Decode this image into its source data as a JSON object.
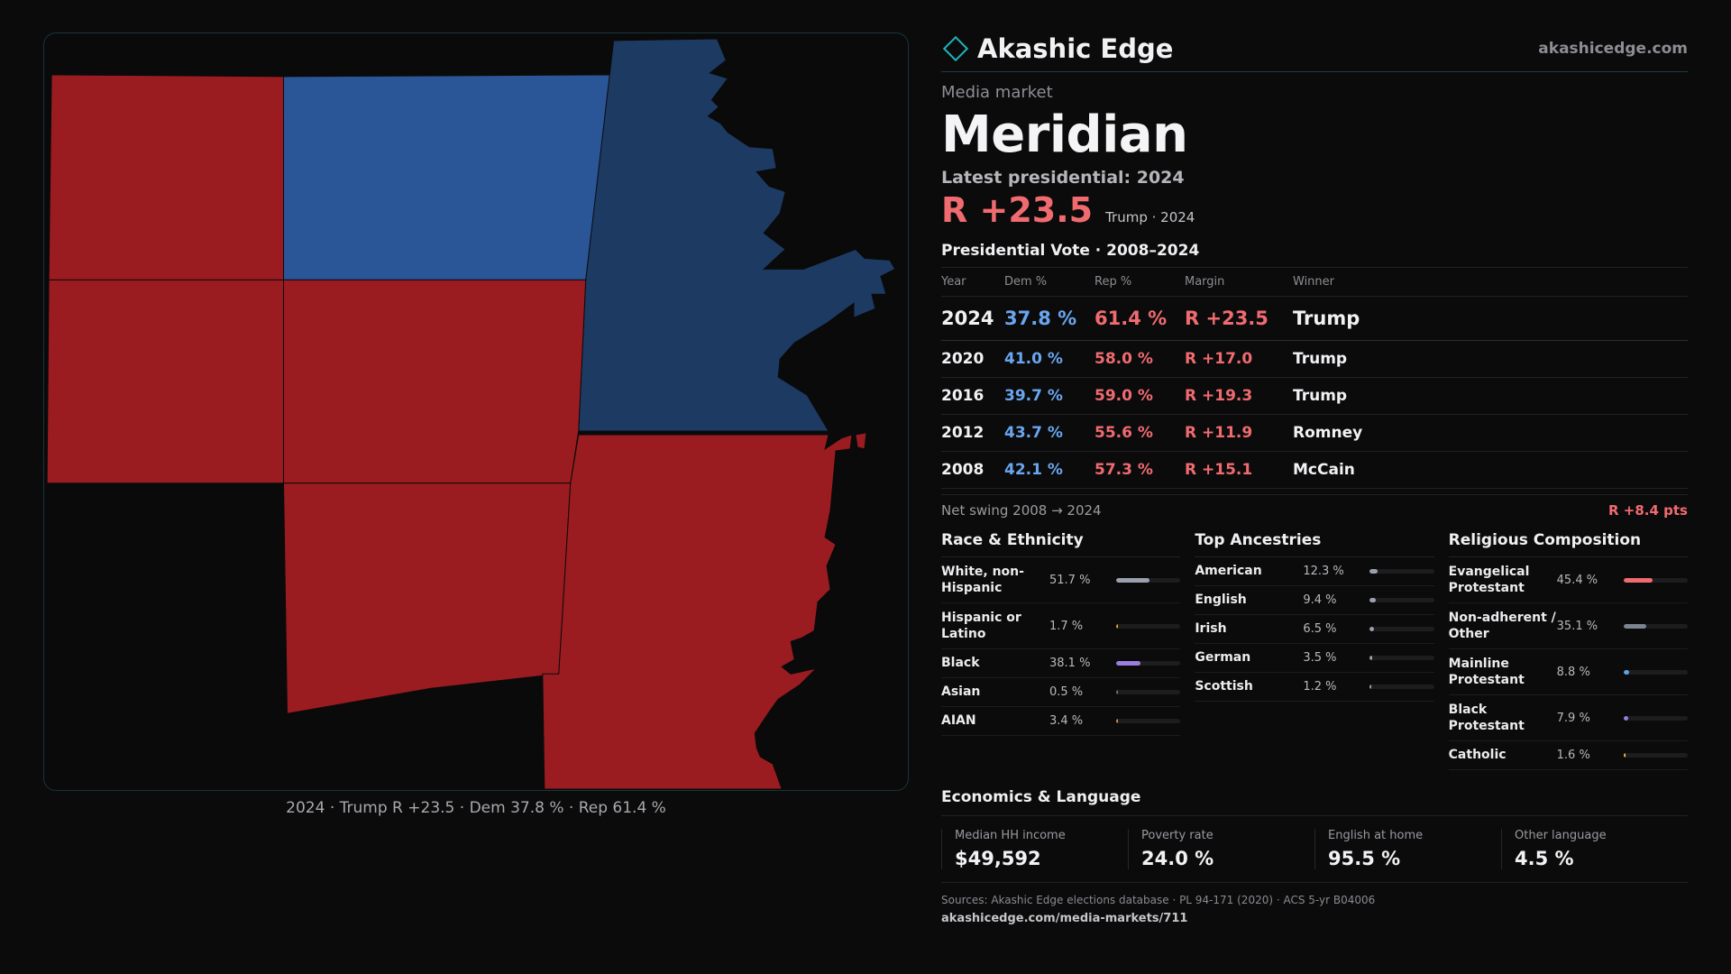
{
  "map": {
    "caption": "2024 · Trump R +23.5 · Dem 37.8 % · Rep 61.4 %",
    "colors": {
      "rep": "#9b1c20",
      "dem_light": "#2a5596",
      "dem_dark": "#1d3a62"
    }
  },
  "header": {
    "brand": "Akashic Edge",
    "url": "akashicedge.com"
  },
  "market": {
    "kicker": "Media market",
    "name": "Meridian",
    "latest": "Latest presidential: 2024",
    "margin": "R +23.5",
    "margin_sub": "Trump · 2024"
  },
  "votes": {
    "title": "Presidential Vote · 2008–2024",
    "headers": [
      "Year",
      "Dem %",
      "Rep %",
      "Margin",
      "Winner"
    ],
    "rows": [
      {
        "year": "2024",
        "dem": "37.8 %",
        "rep": "61.4 %",
        "margin": "R +23.5",
        "winner": "Trump"
      },
      {
        "year": "2020",
        "dem": "41.0 %",
        "rep": "58.0 %",
        "margin": "R +17.0",
        "winner": "Trump"
      },
      {
        "year": "2016",
        "dem": "39.7 %",
        "rep": "59.0 %",
        "margin": "R +19.3",
        "winner": "Trump"
      },
      {
        "year": "2012",
        "dem": "43.7 %",
        "rep": "55.6 %",
        "margin": "R +11.9",
        "winner": "Romney"
      },
      {
        "year": "2008",
        "dem": "42.1 %",
        "rep": "57.3 %",
        "margin": "R +15.1",
        "winner": "McCain"
      }
    ],
    "swing_label": "Net swing 2008 → 2024",
    "swing_value": "R +8.4 pts"
  },
  "race": {
    "title": "Race & Ethnicity",
    "items": [
      {
        "label": "White, non-Hispanic",
        "value": "51.7 %",
        "pct": 51.7,
        "color": "#9aa1ad"
      },
      {
        "label": "Hispanic or Latino",
        "value": "1.7 %",
        "pct": 1.7,
        "color": "#e0a336"
      },
      {
        "label": "Black",
        "value": "38.1 %",
        "pct": 38.1,
        "color": "#9b7ee0"
      },
      {
        "label": "Asian",
        "value": "0.5 %",
        "pct": 0.5,
        "color": "#6e6e74"
      },
      {
        "label": "AIAN",
        "value": "3.4 %",
        "pct": 3.4,
        "color": "#e08a3a"
      }
    ]
  },
  "ancestry": {
    "title": "Top Ancestries",
    "items": [
      {
        "label": "American",
        "value": "12.3 %",
        "pct": 12.3,
        "color": "#9aa1ad"
      },
      {
        "label": "English",
        "value": "9.4 %",
        "pct": 9.4,
        "color": "#9aa1ad"
      },
      {
        "label": "Irish",
        "value": "6.5 %",
        "pct": 6.5,
        "color": "#9aa1ad"
      },
      {
        "label": "German",
        "value": "3.5 %",
        "pct": 3.5,
        "color": "#9aa1ad"
      },
      {
        "label": "Scottish",
        "value": "1.2 %",
        "pct": 1.2,
        "color": "#9aa1ad"
      }
    ]
  },
  "religion": {
    "title": "Religious Composition",
    "items": [
      {
        "label": "Evangelical Protestant",
        "value": "45.4 %",
        "pct": 45.4,
        "color": "#f06b70"
      },
      {
        "label": "Non-adherent / Other",
        "value": "35.1 %",
        "pct": 35.1,
        "color": "#7d8591"
      },
      {
        "label": "Mainline Protestant",
        "value": "8.8 %",
        "pct": 8.8,
        "color": "#5fa1e8"
      },
      {
        "label": "Black Protestant",
        "value": "7.9 %",
        "pct": 7.9,
        "color": "#9b7ee0"
      },
      {
        "label": "Catholic",
        "value": "1.6 %",
        "pct": 1.6,
        "color": "#e0c33a"
      }
    ]
  },
  "economics": {
    "title": "Economics & Language",
    "items": [
      {
        "label": "Median HH income",
        "value": "$49,592"
      },
      {
        "label": "Poverty rate",
        "value": "24.0 %"
      },
      {
        "label": "English at home",
        "value": "95.5 %"
      },
      {
        "label": "Other language",
        "value": "4.5 %"
      }
    ]
  },
  "footer": {
    "sources": "Sources: Akashic Edge elections database · PL 94-171 (2020) · ACS 5-yr B04006",
    "url": "akashicedge.com/media-markets/711"
  }
}
